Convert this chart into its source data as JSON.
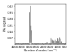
{
  "title": "",
  "ylabel": "PA signal",
  "xlabel": "Nombre d'ondes (cm⁻¹)",
  "xmin": 4000,
  "xmax": 400,
  "ymin": 0.0,
  "ymax": 0.45,
  "ytick_vals": [
    0.07,
    0.14,
    0.21,
    0.28,
    0.35,
    0.42
  ],
  "ytick_labels": [
    "0.07",
    "0.14",
    "0.21",
    "0.28",
    "0.35",
    "0.42"
  ],
  "xticks": [
    4000,
    3500,
    3000,
    2500,
    2000,
    1500,
    1000,
    500
  ],
  "line_color": "#888888",
  "background": "#ffffff",
  "ylabel_fontsize": 3.5,
  "xlabel_fontsize": 3.0,
  "tick_fontsize": 3.0
}
